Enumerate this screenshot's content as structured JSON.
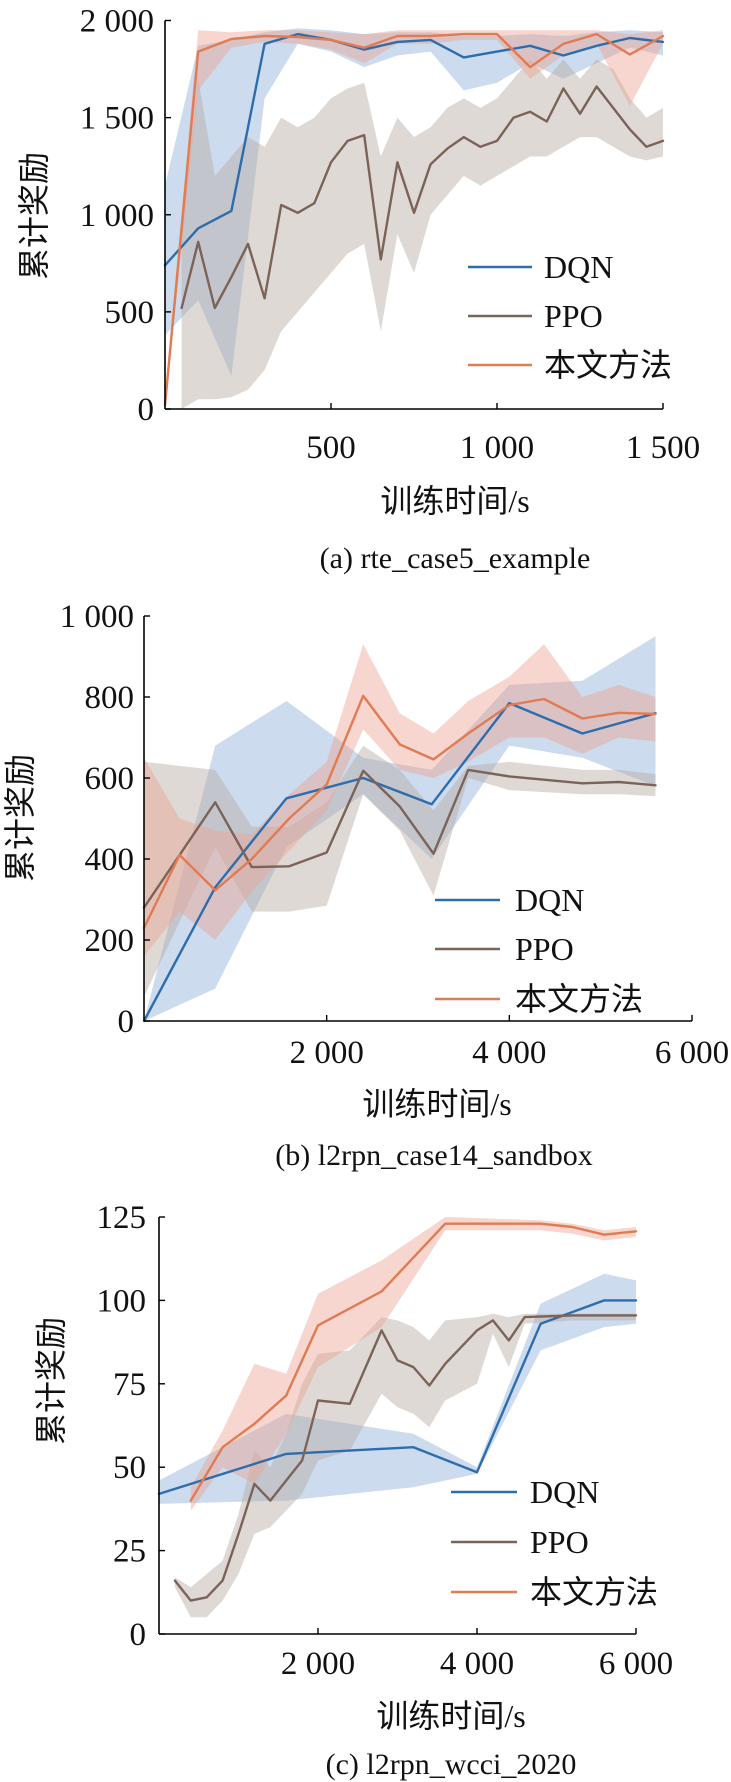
{
  "chart_data": [
    {
      "type": "line",
      "caption": "(a) rte_case5_example",
      "xlabel": "训练时间/s",
      "ylabel": "累计奖励",
      "xlim": [
        0,
        1500
      ],
      "ylim": [
        0,
        2000
      ],
      "xticks": [
        500,
        1000,
        1500
      ],
      "xtick_labels": [
        "500",
        "1 000",
        "1 500"
      ],
      "yticks": [
        0,
        500,
        1000,
        1500,
        2000
      ],
      "ytick_labels": [
        "0",
        "500",
        "1 000",
        "1 500",
        "2 000"
      ],
      "grid": false,
      "legend_position": "lower-right",
      "series": [
        {
          "name": "DQN",
          "color": "#2e6dab",
          "band_color": "#8fb0d8",
          "x": [
            0,
            100,
            200,
            300,
            400,
            500,
            600,
            700,
            800,
            900,
            1000,
            1100,
            1200,
            1300,
            1400,
            1500
          ],
          "y": [
            740,
            930,
            1020,
            1880,
            1930,
            1900,
            1850,
            1890,
            1900,
            1810,
            1840,
            1870,
            1820,
            1870,
            1910,
            1890
          ],
          "lower": [
            380,
            560,
            170,
            1600,
            1880,
            1840,
            1760,
            1820,
            1840,
            1640,
            1680,
            1780,
            1700,
            1780,
            1860,
            1820
          ],
          "upper": [
            1150,
            1870,
            1900,
            1940,
            1960,
            1950,
            1930,
            1940,
            1940,
            1920,
            1920,
            1930,
            1920,
            1940,
            1950,
            1940
          ]
        },
        {
          "name": "PPO",
          "color": "#7b6358",
          "band_color": "#b9aaa4",
          "x": [
            50,
            100,
            150,
            200,
            250,
            300,
            350,
            400,
            450,
            500,
            550,
            600,
            650,
            700,
            750,
            800,
            850,
            900,
            950,
            1000,
            1050,
            1100,
            1150,
            1200,
            1250,
            1300,
            1350,
            1400,
            1450,
            1500
          ],
          "y": [
            520,
            860,
            520,
            680,
            850,
            570,
            1050,
            1010,
            1060,
            1270,
            1380,
            1410,
            770,
            1270,
            1010,
            1260,
            1340,
            1400,
            1350,
            1380,
            1500,
            1530,
            1480,
            1650,
            1520,
            1660,
            1550,
            1440,
            1350,
            1380
          ],
          "lower": [
            0,
            50,
            50,
            60,
            100,
            200,
            400,
            500,
            600,
            700,
            800,
            850,
            400,
            900,
            700,
            1000,
            1100,
            1200,
            1150,
            1200,
            1250,
            1300,
            1300,
            1350,
            1400,
            1400,
            1350,
            1300,
            1280,
            1300
          ],
          "upper": [
            900,
            1700,
            1200,
            1300,
            1400,
            1350,
            1500,
            1450,
            1500,
            1600,
            1650,
            1680,
            1300,
            1500,
            1400,
            1450,
            1550,
            1600,
            1550,
            1600,
            1700,
            1800,
            1700,
            1800,
            1700,
            1800,
            1750,
            1600,
            1500,
            1550
          ]
        },
        {
          "name": "本文方法",
          "color": "#e07b53",
          "band_color": "#eba493",
          "x": [
            0,
            100,
            200,
            300,
            400,
            500,
            600,
            700,
            800,
            900,
            1000,
            1100,
            1200,
            1300,
            1400,
            1500
          ],
          "y": [
            20,
            1840,
            1905,
            1920,
            1915,
            1900,
            1860,
            1920,
            1920,
            1930,
            1930,
            1760,
            1880,
            1930,
            1825,
            1920
          ],
          "lower": [
            0,
            1640,
            1860,
            1890,
            1880,
            1850,
            1780,
            1880,
            1880,
            1900,
            1900,
            1700,
            1820,
            1880,
            1560,
            1880
          ],
          "upper": [
            80,
            1950,
            1940,
            1950,
            1950,
            1940,
            1930,
            1950,
            1950,
            1950,
            1950,
            1950,
            1950,
            1950,
            1930,
            1950
          ]
        }
      ]
    },
    {
      "type": "line",
      "caption": "(b) l2rpn_case14_sandbox",
      "xlabel": "训练时间/s",
      "ylabel": "累计奖励",
      "xlim": [
        0,
        6000
      ],
      "ylim": [
        0,
        1000
      ],
      "xticks": [
        2000,
        4000,
        6000
      ],
      "xtick_labels": [
        "2 000",
        "4 000",
        "6 000"
      ],
      "yticks": [
        0,
        200,
        400,
        600,
        800,
        1000
      ],
      "ytick_labels": [
        "0",
        "200",
        "400",
        "600",
        "800",
        "1 000"
      ],
      "grid": false,
      "legend_position": "lower-right",
      "series": [
        {
          "name": "DQN",
          "color": "#2e6dab",
          "band_color": "#8fb0d8",
          "x": [
            0,
            780,
            1560,
            2400,
            3150,
            4000,
            4800,
            5600
          ],
          "y": [
            0,
            330,
            550,
            600,
            535,
            785,
            710,
            760
          ],
          "lower": [
            0,
            80,
            430,
            560,
            400,
            680,
            650,
            580
          ],
          "upper": [
            0,
            680,
            790,
            650,
            620,
            830,
            840,
            950
          ]
        },
        {
          "name": "PPO",
          "color": "#7b6358",
          "band_color": "#b9aaa4",
          "x": [
            0,
            780,
            1180,
            1590,
            2000,
            2400,
            2800,
            3170,
            3550,
            4000,
            4800,
            5200,
            5600
          ],
          "y": [
            280,
            540,
            380,
            382,
            416,
            618,
            530,
            413,
            620,
            604,
            587,
            590,
            582
          ],
          "lower": [
            60,
            430,
            270,
            270,
            285,
            560,
            470,
            310,
            600,
            570,
            560,
            560,
            555
          ],
          "upper": [
            640,
            620,
            480,
            480,
            540,
            680,
            620,
            520,
            630,
            640,
            620,
            620,
            610
          ]
        },
        {
          "name": "本文方法",
          "color": "#e07b53",
          "band_color": "#eba493",
          "x": [
            0,
            390,
            780,
            1180,
            1590,
            2000,
            2400,
            2800,
            3170,
            3550,
            4000,
            4380,
            4800,
            5200,
            5600
          ],
          "y": [
            230,
            410,
            323,
            400,
            500,
            584,
            803,
            683,
            646,
            710,
            780,
            795,
            747,
            761,
            758
          ],
          "lower": [
            160,
            270,
            200,
            320,
            420,
            520,
            720,
            620,
            600,
            640,
            700,
            700,
            660,
            700,
            690
          ],
          "upper": [
            650,
            500,
            470,
            460,
            560,
            640,
            930,
            760,
            710,
            790,
            850,
            930,
            800,
            830,
            800
          ]
        }
      ]
    },
    {
      "type": "line",
      "caption": "(c) l2rpn_wcci_2020",
      "xlabel": "训练时间/s",
      "ylabel": "累计奖励",
      "xlim": [
        0,
        6000
      ],
      "ylim": [
        0,
        125
      ],
      "xticks": [
        2000,
        4000,
        6000
      ],
      "xtick_labels": [
        "2 000",
        "4 000",
        "6 000"
      ],
      "yticks": [
        0,
        25,
        50,
        75,
        100,
        125
      ],
      "ytick_labels": [
        "0",
        "25",
        "50",
        "75",
        "100",
        "125"
      ],
      "grid": false,
      "legend_position": "lower-right",
      "series": [
        {
          "name": "DQN",
          "color": "#2e6dab",
          "band_color": "#8fb0d8",
          "x": [
            0,
            1600,
            3200,
            4000,
            4800,
            5600,
            6000
          ],
          "y": [
            42,
            54,
            56,
            48.5,
            93,
            100,
            100
          ],
          "lower": [
            39,
            40,
            44,
            48,
            85,
            92,
            93
          ],
          "upper": [
            46,
            66,
            60,
            50,
            99,
            108,
            106
          ]
        },
        {
          "name": "PPO",
          "color": "#7b6358",
          "band_color": "#b9aaa4",
          "x": [
            200,
            400,
            600,
            800,
            1000,
            1200,
            1400,
            1600,
            1800,
            2000,
            2400,
            2800,
            3000,
            3200,
            3400,
            3600,
            4000,
            4200,
            4400,
            4600,
            5200,
            6000
          ],
          "y": [
            16,
            10,
            11,
            16,
            30,
            45,
            40,
            46,
            52,
            70,
            69,
            91,
            82,
            80,
            74.5,
            81,
            91,
            94,
            88,
            95,
            95.5,
            95.5
          ],
          "lower": [
            14,
            5,
            5,
            10,
            18,
            30,
            32,
            37,
            42,
            52,
            55,
            72,
            68,
            66,
            62,
            70,
            75,
            90,
            80,
            93,
            94,
            94
          ],
          "upper": [
            17,
            14,
            18,
            22,
            36,
            55,
            50,
            60,
            75,
            84,
            85,
            95,
            94,
            92,
            88,
            94,
            95,
            96,
            95,
            96,
            96,
            96
          ]
        },
        {
          "name": "本文方法",
          "color": "#e07b53",
          "band_color": "#eba493",
          "x": [
            400,
            800,
            1200,
            1600,
            2000,
            2800,
            3600,
            4800,
            5200,
            5600,
            6000
          ],
          "y": [
            40,
            56,
            63,
            71.5,
            92.5,
            102.7,
            123,
            123,
            122,
            119.7,
            120.7
          ],
          "lower": [
            37,
            50,
            45,
            60,
            80,
            92,
            121,
            121,
            120,
            118,
            119
          ],
          "upper": [
            44,
            61,
            81,
            78,
            102,
            112,
            125,
            124,
            123,
            121,
            122
          ]
        }
      ]
    }
  ]
}
